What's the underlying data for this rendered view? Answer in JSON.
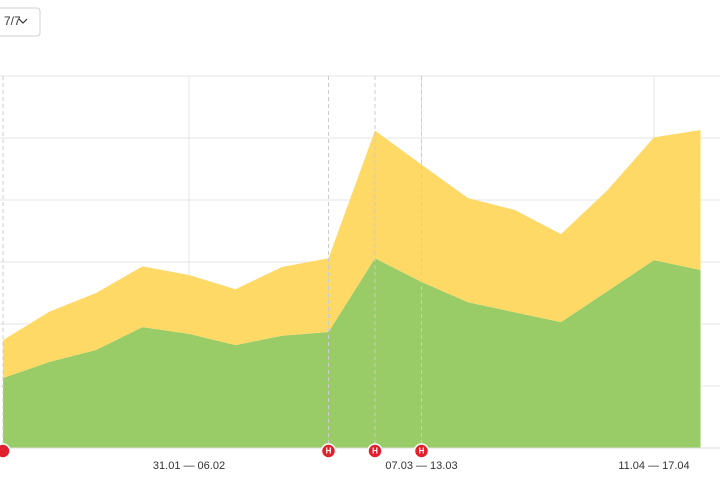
{
  "chart_data": {
    "type": "stacked_area",
    "filter_label": "7/7",
    "categories": [
      null,
      null,
      null,
      null,
      "31.01 — 06.02",
      null,
      null,
      null,
      null,
      "07.03 — 13.03",
      null,
      null,
      null,
      null,
      "11.04 — 17.04",
      null
    ],
    "series": [
      {
        "color": "#99cc66",
        "values": [
          1.13,
          1.39,
          1.58,
          1.95,
          1.84,
          1.66,
          1.81,
          1.87,
          3.06,
          2.68,
          2.35,
          2.19,
          2.03,
          2.53,
          3.03,
          2.87
        ]
      },
      {
        "color": "#ffd966",
        "values": [
          0.61,
          0.81,
          0.92,
          0.98,
          0.95,
          0.9,
          1.11,
          1.19,
          2.06,
          1.89,
          1.68,
          1.65,
          1.42,
          1.63,
          1.98,
          2.26
        ]
      }
    ],
    "ylim": [
      0,
      6
    ],
    "ygrid": [
      1,
      2,
      3,
      4,
      5,
      6
    ],
    "annotations": [
      {
        "at": 0
      },
      {
        "at": 7,
        "label": "Н"
      },
      {
        "at": 8,
        "label": "Н"
      },
      {
        "at": 9,
        "label": "Н"
      }
    ],
    "annotation_color": "#e0202a"
  }
}
